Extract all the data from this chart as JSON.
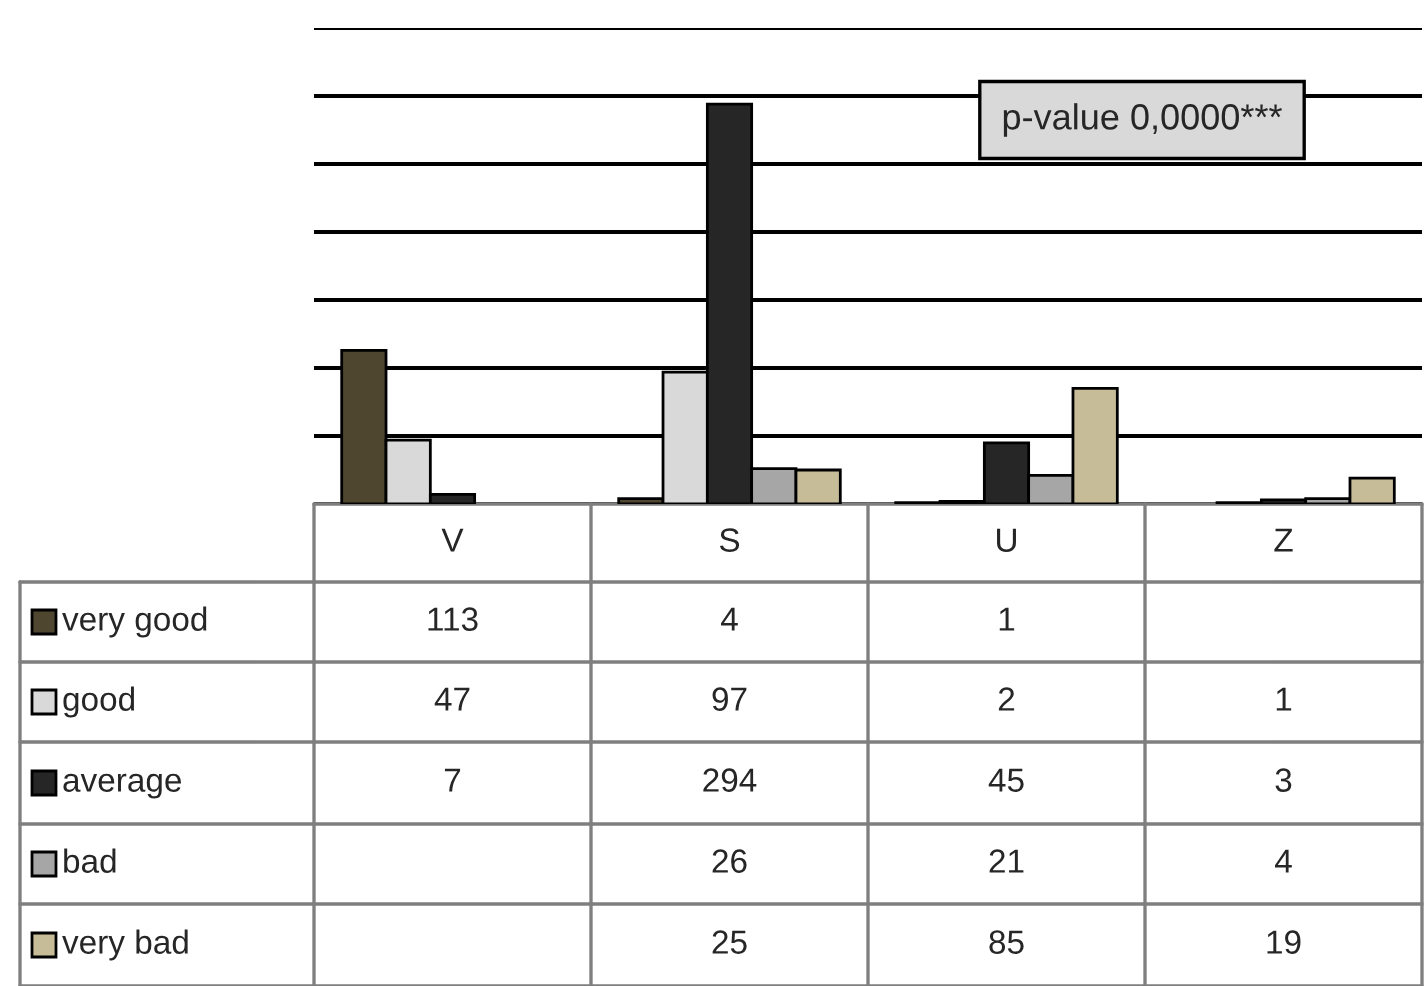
{
  "chart_data": {
    "type": "bar",
    "categories": [
      "V",
      "S",
      "U",
      "Z"
    ],
    "series": [
      {
        "name": "very good",
        "color": "#4f4630",
        "values": [
          113,
          4,
          1,
          null
        ]
      },
      {
        "name": "good",
        "color": "#d9d9d9",
        "values": [
          47,
          97,
          2,
          1
        ]
      },
      {
        "name": "average",
        "color": "#262626",
        "values": [
          7,
          294,
          45,
          3
        ]
      },
      {
        "name": "bad",
        "color": "#a6a6a6",
        "values": [
          null,
          26,
          21,
          4
        ]
      },
      {
        "name": "very bad",
        "color": "#c6bd98",
        "values": [
          null,
          25,
          85,
          19
        ]
      }
    ],
    "ylim": [
      0,
      350
    ],
    "yticks": [
      {
        "value": 0,
        "label": null
      },
      {
        "value": 50,
        "label": null
      },
      {
        "value": 100,
        "label": null
      },
      {
        "value": 150,
        "label": null
      },
      {
        "value": 200,
        "label": null
      },
      {
        "value": 250,
        "label": null
      },
      {
        "value": 300,
        "label": null
      },
      {
        "value": 350,
        "label": null
      }
    ],
    "grid": "y",
    "tick_labels": "x",
    "data_labels": true,
    "legend": "bottom left",
    "annotations": [
      "p-value 0,0000***"
    ]
  }
}
